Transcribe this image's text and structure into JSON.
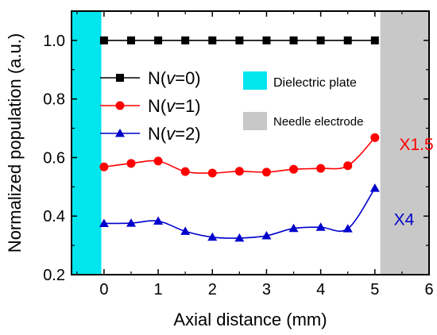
{
  "chart_data": {
    "type": "line",
    "xlabel": "Axial distance (mm)",
    "ylabel": "Normalized population (a.u.)",
    "xlim": [
      -0.6,
      6
    ],
    "ylim": [
      0.2,
      1.1
    ],
    "x_ticks": [
      "0",
      "1",
      "2",
      "3",
      "4",
      "5",
      "6"
    ],
    "y_ticks": [
      "0.2",
      "0.4",
      "0.6",
      "0.8",
      "1.0"
    ],
    "x": [
      0,
      0.5,
      1,
      1.5,
      2,
      2.5,
      3,
      3.5,
      4,
      4.5,
      5
    ],
    "series": [
      {
        "name": "N(v=0)",
        "label_prefix": "N(",
        "label_var": "v",
        "label_suffix": "=0)",
        "color": "#000000",
        "marker": "square",
        "values": [
          1.0,
          1.0,
          1.0,
          1.0,
          1.0,
          1.0,
          1.0,
          1.0,
          1.0,
          1.0,
          1.0
        ]
      },
      {
        "name": "N(v=1)",
        "label_prefix": "N(",
        "label_var": "v",
        "label_suffix": "=1)",
        "color": "#ff0000",
        "marker": "circle",
        "values": [
          0.568,
          0.58,
          0.588,
          0.552,
          0.547,
          0.553,
          0.55,
          0.56,
          0.563,
          0.572,
          0.668
        ]
      },
      {
        "name": "N(v=2)",
        "label_prefix": "N(",
        "label_var": "v",
        "label_suffix": "=2)",
        "color": "#0000cc",
        "marker": "triangle",
        "values": [
          0.375,
          0.376,
          0.383,
          0.348,
          0.328,
          0.325,
          0.333,
          0.358,
          0.362,
          0.357,
          0.495
        ]
      }
    ],
    "regions": [
      {
        "name": "Dielectric plate",
        "x_from": -0.6,
        "x_to": -0.05,
        "color": "#00e5ee"
      },
      {
        "name": "Needle electrode",
        "x_from": 5.1,
        "x_to": 6,
        "color": "#c8c8c8"
      }
    ],
    "annotations": [
      {
        "text": "X1.5",
        "x": 5.45,
        "y": 0.625,
        "color": "#ff0000"
      },
      {
        "text": "X4",
        "x": 5.35,
        "y": 0.37,
        "color": "#0000cc"
      }
    ],
    "grid": false,
    "legend_position": "top-left"
  }
}
